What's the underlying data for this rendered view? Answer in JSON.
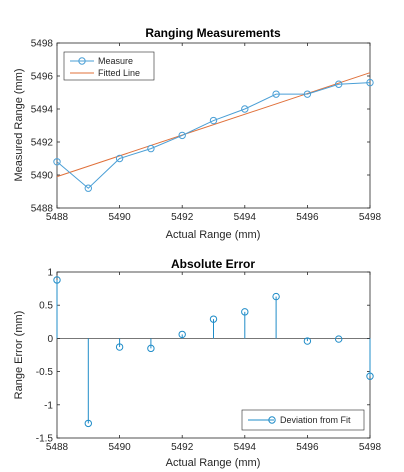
{
  "chart_data": [
    {
      "type": "line",
      "title": "Ranging Measurements",
      "xlabel": "Actual Range (mm)",
      "ylabel": "Measured Range (mm)",
      "xlim": [
        5488,
        5498
      ],
      "ylim": [
        5488,
        5498
      ],
      "xticks": [
        "5488",
        "5490",
        "5492",
        "5494",
        "5496",
        "5498"
      ],
      "yticks": [
        "5488",
        "5490",
        "5492",
        "5494",
        "5496",
        "5498"
      ],
      "grid": false,
      "legend": {
        "location": "top-left"
      },
      "series": [
        {
          "name": "Measure",
          "style": "line-circle-markers",
          "color": "#4a9fd6",
          "x": [
            5488,
            5489,
            5490,
            5491,
            5492,
            5493,
            5494,
            5495,
            5496,
            5497,
            5498
          ],
          "y": [
            5490.8,
            5489.2,
            5491.0,
            5491.6,
            5492.4,
            5493.3,
            5494.0,
            5494.9,
            5494.9,
            5495.5,
            5495.6
          ]
        },
        {
          "name": "Fitted Line",
          "style": "line",
          "color": "#e0703a",
          "x": [
            5488,
            5498
          ],
          "y": [
            5489.9,
            5496.2
          ]
        }
      ]
    },
    {
      "type": "stem",
      "title": "Absolute Error",
      "xlabel": "Actual Range (mm)",
      "ylabel": "Range Error (mm)",
      "xlim": [
        5488,
        5498
      ],
      "ylim": [
        -1.5,
        1
      ],
      "xticks": [
        "5488",
        "5490",
        "5492",
        "5494",
        "5496",
        "5498"
      ],
      "yticks": [
        "1",
        "0.5",
        "0",
        "-0.5",
        "-1",
        "-1.5"
      ],
      "grid": false,
      "legend": {
        "location": "bottom-right"
      },
      "series": [
        {
          "name": "Deviation from Fit",
          "color": "#1f8cc8",
          "x": [
            5488,
            5489,
            5490,
            5491,
            5492,
            5493,
            5494,
            5495,
            5496,
            5497,
            5498
          ],
          "y": [
            0.88,
            -1.28,
            -0.13,
            -0.15,
            0.06,
            0.29,
            0.4,
            0.63,
            -0.04,
            -0.01,
            -0.57
          ]
        }
      ]
    }
  ]
}
